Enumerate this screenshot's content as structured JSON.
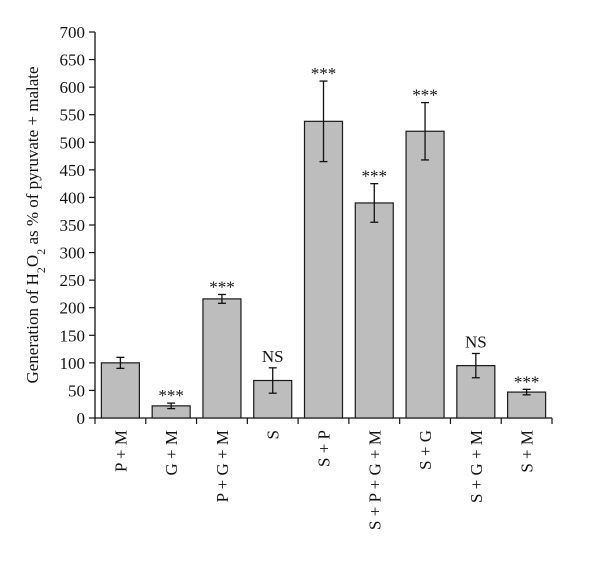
{
  "chart_data": {
    "type": "bar",
    "ylabel": {
      "prefix": "Generation of H",
      "sub1": "2",
      "mid": "O",
      "sub2": "2",
      "suffix": " as % of pyruvate + malate"
    },
    "ylim": [
      0,
      700
    ],
    "yticks": [
      0,
      50,
      100,
      150,
      200,
      250,
      300,
      350,
      400,
      450,
      500,
      550,
      600,
      650,
      700
    ],
    "categories": [
      "P + M",
      "G + M",
      "P + G + M",
      "S",
      "S + P",
      "S + P + G + M",
      "S + G",
      "S + G + M",
      "S + M"
    ],
    "values": [
      100,
      22,
      216,
      68,
      538,
      390,
      520,
      95,
      47
    ],
    "errors": [
      10,
      5,
      8,
      23,
      73,
      35,
      52,
      22,
      5
    ],
    "significance": [
      "",
      "***",
      "***",
      "NS",
      "***",
      "***",
      "***",
      "NS",
      "***"
    ],
    "bar_color": "#bdbdbd",
    "edge_color": "#1a1a1a",
    "grid": false
  }
}
